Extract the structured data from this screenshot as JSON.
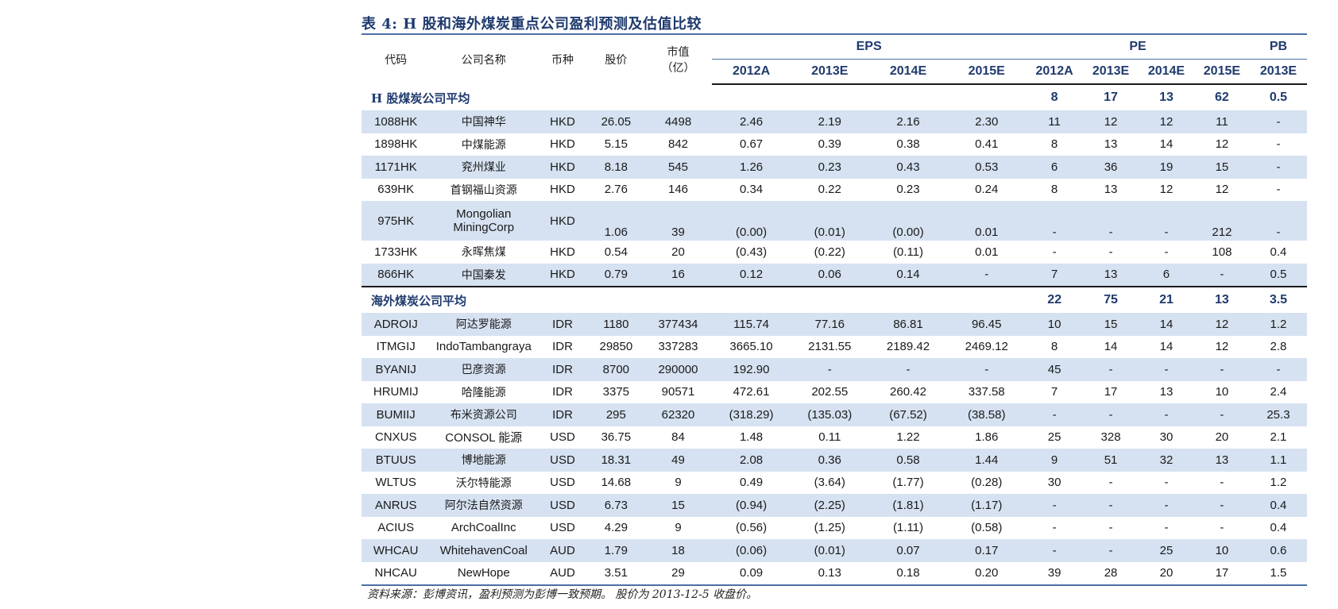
{
  "title": "表 4:  H 股和海外煤炭重点公司盈利预测及估值比较",
  "headers": {
    "code": "代码",
    "name": "公司名称",
    "currency": "币种",
    "price": "股价",
    "mcap": "市值\n（亿）",
    "eps": "EPS",
    "pe": "PE",
    "pb": "PB",
    "eps_years": [
      "2012A",
      "2013E",
      "2014E",
      "2015E"
    ],
    "pe_years": [
      "2012A",
      "2013E",
      "2014E",
      "2015E"
    ],
    "pb_years": [
      "2013E"
    ]
  },
  "sections": [
    {
      "label": "H 股煤炭公司平均",
      "avg": [
        "8",
        "17",
        "13",
        "62",
        "0.5"
      ],
      "rows": [
        [
          "1088HK",
          "中国神华",
          "HKD",
          "26.05",
          "4498",
          "2.46",
          "2.19",
          "2.16",
          "2.30",
          "11",
          "12",
          "12",
          "11",
          "-"
        ],
        [
          "1898HK",
          "中煤能源",
          "HKD",
          "5.15",
          "842",
          "0.67",
          "0.39",
          "0.38",
          "0.41",
          "8",
          "13",
          "14",
          "12",
          "-"
        ],
        [
          "1171HK",
          "兖州煤业",
          "HKD",
          "8.18",
          "545",
          "1.26",
          "0.23",
          "0.43",
          "0.53",
          "6",
          "36",
          "19",
          "15",
          "-"
        ],
        [
          "639HK",
          "首钢福山资源",
          "HKD",
          "2.76",
          "146",
          "0.34",
          "0.22",
          "0.23",
          "0.24",
          "8",
          "13",
          "12",
          "12",
          "-"
        ],
        [
          "975HK",
          "Mongolian\nMiningCorp",
          "HKD",
          "1.06",
          "39",
          "(0.00)",
          "(0.01)",
          "(0.00)",
          "0.01",
          "-",
          "-",
          "-",
          "212",
          "-"
        ],
        [
          "1733HK",
          "永晖焦煤",
          "HKD",
          "0.54",
          "20",
          "(0.43)",
          "(0.22)",
          "(0.11)",
          "0.01",
          "-",
          "-",
          "-",
          "108",
          "0.4"
        ],
        [
          "866HK",
          "中国秦发",
          "HKD",
          "0.79",
          "16",
          "0.12",
          "0.06",
          "0.14",
          "-",
          "7",
          "13",
          "6",
          "-",
          "0.5"
        ]
      ]
    },
    {
      "label": "海外煤炭公司平均",
      "avg": [
        "22",
        "75",
        "21",
        "13",
        "3.5"
      ],
      "rows": [
        [
          "ADROIJ",
          "阿达罗能源",
          "IDR",
          "1180",
          "377434",
          "115.74",
          "77.16",
          "86.81",
          "96.45",
          "10",
          "15",
          "14",
          "12",
          "1.2"
        ],
        [
          "ITMGIJ",
          "IndoTambangraya",
          "IDR",
          "29850",
          "337283",
          "3665.10",
          "2131.55",
          "2189.42",
          "2469.12",
          "8",
          "14",
          "14",
          "12",
          "2.8"
        ],
        [
          "BYANIJ",
          "巴彦资源",
          "IDR",
          "8700",
          "290000",
          "192.90",
          "-",
          "-",
          "-",
          "45",
          "-",
          "-",
          "-",
          "-"
        ],
        [
          "HRUMIJ",
          "哈隆能源",
          "IDR",
          "3375",
          "90571",
          "472.61",
          "202.55",
          "260.42",
          "337.58",
          "7",
          "17",
          "13",
          "10",
          "2.4"
        ],
        [
          "BUMIIJ",
          "布米资源公司",
          "IDR",
          "295",
          "62320",
          "(318.29)",
          "(135.03)",
          "(67.52)",
          "(38.58)",
          "-",
          "-",
          "-",
          "-",
          "25.3"
        ],
        [
          "CNXUS",
          "CONSOL 能源",
          "USD",
          "36.75",
          "84",
          "1.48",
          "0.11",
          "1.22",
          "1.86",
          "25",
          "328",
          "30",
          "20",
          "2.1"
        ],
        [
          "BTUUS",
          "博地能源",
          "USD",
          "18.31",
          "49",
          "2.08",
          "0.36",
          "0.58",
          "1.44",
          "9",
          "51",
          "32",
          "13",
          "1.1"
        ],
        [
          "WLTUS",
          "沃尔特能源",
          "USD",
          "14.68",
          "9",
          "0.49",
          "(3.64)",
          "(1.77)",
          "(0.28)",
          "30",
          "-",
          "-",
          "-",
          "1.2"
        ],
        [
          "ANRUS",
          "阿尔法自然资源",
          "USD",
          "6.73",
          "15",
          "(0.94)",
          "(2.25)",
          "(1.81)",
          "(1.17)",
          "-",
          "-",
          "-",
          "-",
          "0.4"
        ],
        [
          "ACIUS",
          "ArchCoalInc",
          "USD",
          "4.29",
          "9",
          "(0.56)",
          "(1.25)",
          "(1.11)",
          "(0.58)",
          "-",
          "-",
          "-",
          "-",
          "0.4"
        ],
        [
          "WHCAU",
          "WhitehavenCoal",
          "AUD",
          "1.79",
          "18",
          "(0.06)",
          "(0.01)",
          "0.07",
          "0.17",
          "-",
          "-",
          "25",
          "10",
          "0.6"
        ],
        [
          "NHCAU",
          "NewHope",
          "AUD",
          "3.51",
          "29",
          "0.09",
          "0.13",
          "0.18",
          "0.20",
          "39",
          "28",
          "20",
          "17",
          "1.5"
        ]
      ]
    }
  ],
  "source": "资料来源：彭博资讯，盈利预测为彭博一致预期。   股价为 2013-12-5 收盘价。",
  "colors": {
    "accent": "#1f3a6e",
    "rule": "#4a6fa5",
    "shade": "#d6e2f1"
  }
}
